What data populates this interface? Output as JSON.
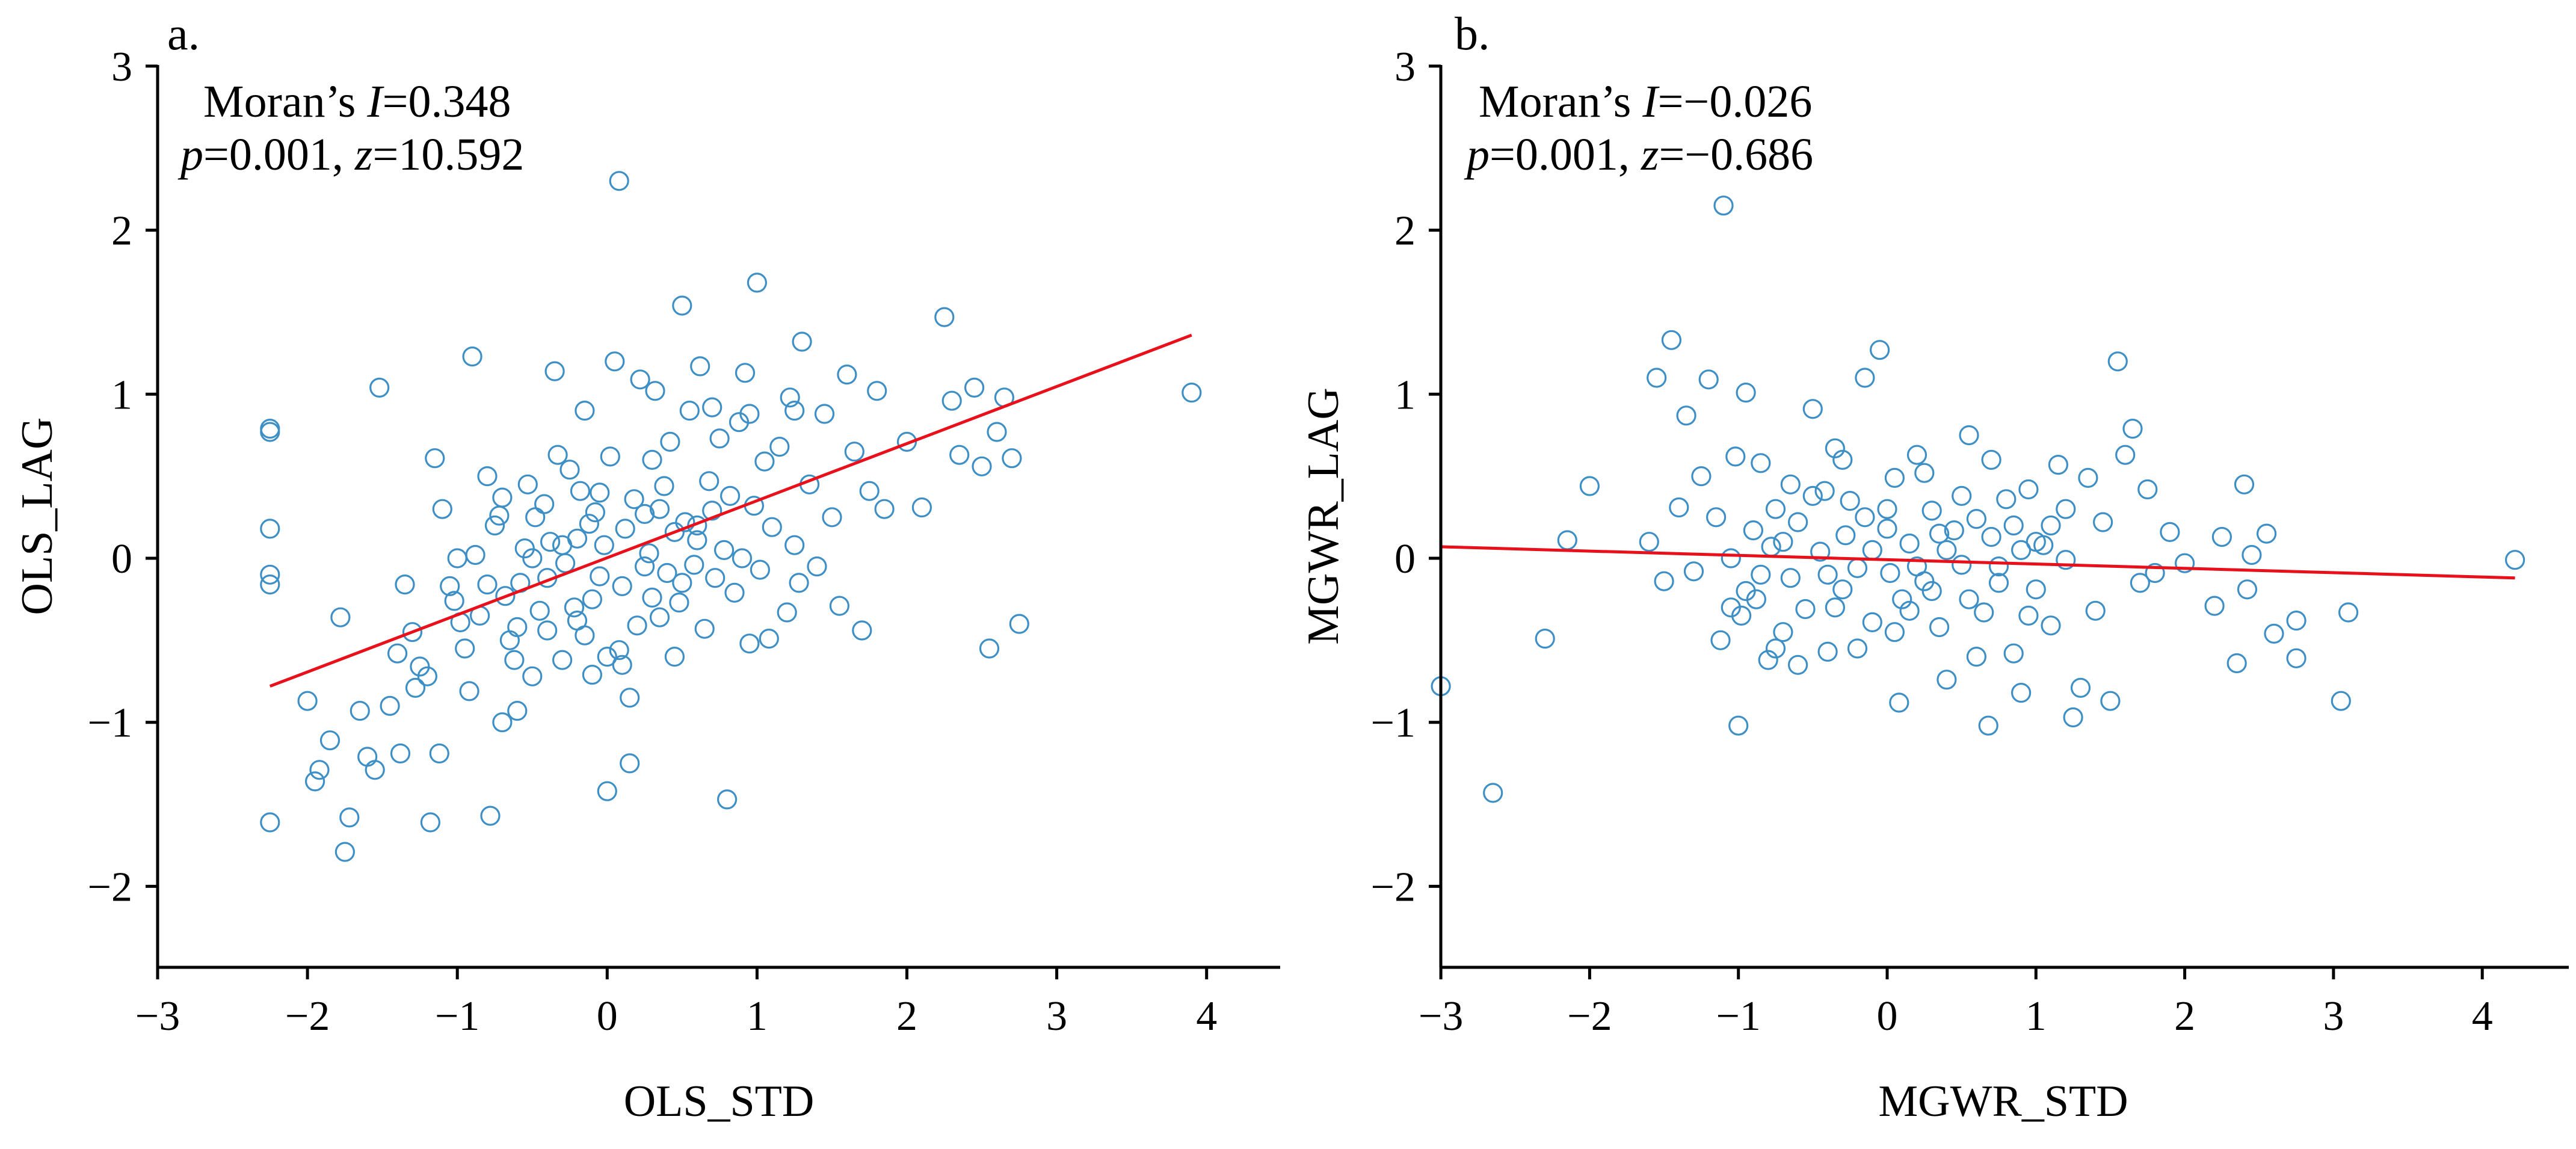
{
  "colors": {
    "point": "#3d8fc6",
    "fit": "#e8101a",
    "axis": "#000000"
  },
  "chart_data": [
    {
      "type": "scatter",
      "panel": "a.",
      "xlabel": "OLS_STD",
      "ylabel": "OLS_LAG",
      "xlim": [
        -3,
        4.5
      ],
      "ylim": [
        -2.5,
        3
      ],
      "xticks": [
        -3,
        -2,
        -1,
        0,
        1,
        2,
        3,
        4
      ],
      "yticks": [
        -2,
        -1,
        0,
        1,
        2,
        3
      ],
      "xtick_labels": [
        "−3",
        "−2",
        "−1",
        "0",
        "1",
        "2",
        "3",
        "4"
      ],
      "ytick_labels": [
        "−2",
        "−1",
        "0",
        "1",
        "2",
        "3"
      ],
      "annotation": {
        "line1": {
          "a": "Moran’s ",
          "b": "I",
          "c": "=0.348"
        },
        "line2": {
          "a": "p",
          "b": "=0.001, ",
          "c": "z",
          "d": "=10.592"
        }
      },
      "fit_line": {
        "x": [
          -2.25,
          3.9
        ],
        "y": [
          -0.78,
          1.36
        ]
      },
      "points": [
        [
          -2.25,
          0.79
        ],
        [
          -2.25,
          0.77
        ],
        [
          -2.25,
          0.18
        ],
        [
          -2.25,
          -0.1
        ],
        [
          -2.25,
          -0.16
        ],
        [
          -2.25,
          -1.61
        ],
        [
          -2.0,
          -0.87
        ],
        [
          -1.95,
          -1.36
        ],
        [
          -1.92,
          -1.29
        ],
        [
          -1.85,
          -1.11
        ],
        [
          -1.78,
          -0.36
        ],
        [
          -1.75,
          -1.79
        ],
        [
          -1.72,
          -1.58
        ],
        [
          -1.65,
          -0.93
        ],
        [
          -1.6,
          -1.21
        ],
        [
          -1.55,
          -1.29
        ],
        [
          -1.52,
          1.04
        ],
        [
          -1.45,
          -0.9
        ],
        [
          -1.4,
          -0.58
        ],
        [
          -1.38,
          -1.19
        ],
        [
          -1.35,
          -0.16
        ],
        [
          -1.28,
          -0.79
        ],
        [
          -1.25,
          -0.66
        ],
        [
          -1.2,
          -0.72
        ],
        [
          -1.18,
          -1.61
        ],
        [
          -1.15,
          0.61
        ],
        [
          -1.12,
          -1.19
        ],
        [
          -1.1,
          0.3
        ],
        [
          -1.05,
          -0.17
        ],
        [
          -1.02,
          -0.26
        ],
        [
          -0.98,
          -0.39
        ],
        [
          -0.95,
          -0.55
        ],
        [
          -0.92,
          -0.81
        ],
        [
          -0.9,
          1.23
        ],
        [
          -0.88,
          0.02
        ],
        [
          -0.85,
          -0.35
        ],
        [
          -0.8,
          -0.16
        ],
        [
          -0.78,
          -1.57
        ],
        [
          -0.75,
          0.2
        ],
        [
          -0.72,
          0.26
        ],
        [
          -0.7,
          0.37
        ],
        [
          -0.68,
          -0.23
        ],
        [
          -0.65,
          -0.5
        ],
        [
          -0.62,
          -0.62
        ],
        [
          -0.6,
          -0.93
        ],
        [
          -0.58,
          -0.15
        ],
        [
          -0.55,
          0.06
        ],
        [
          -0.53,
          0.45
        ],
        [
          -0.5,
          -0.72
        ],
        [
          -0.48,
          0.25
        ],
        [
          -0.45,
          -0.32
        ],
        [
          -0.42,
          0.33
        ],
        [
          -0.4,
          -0.44
        ],
        [
          -0.38,
          0.1
        ],
        [
          -0.35,
          1.14
        ],
        [
          -0.33,
          0.63
        ],
        [
          -0.3,
          -0.62
        ],
        [
          -0.28,
          -0.03
        ],
        [
          -0.25,
          0.54
        ],
        [
          -0.22,
          -0.3
        ],
        [
          -0.2,
          0.12
        ],
        [
          -0.18,
          0.41
        ],
        [
          -0.15,
          -0.47
        ],
        [
          -0.12,
          0.21
        ],
        [
          -0.1,
          -0.71
        ],
        [
          -0.08,
          0.28
        ],
        [
          -0.05,
          -0.11
        ],
        [
          -0.02,
          0.08
        ],
        [
          0.0,
          -1.42
        ],
        [
          0.02,
          0.62
        ],
        [
          0.05,
          1.2
        ],
        [
          0.08,
          -0.56
        ],
        [
          0.1,
          -0.17
        ],
        [
          0.12,
          0.18
        ],
        [
          0.15,
          -1.25
        ],
        [
          0.18,
          0.36
        ],
        [
          0.2,
          -0.41
        ],
        [
          0.22,
          1.09
        ],
        [
          0.25,
          0.27
        ],
        [
          0.28,
          0.03
        ],
        [
          0.3,
          -0.24
        ],
        [
          0.32,
          1.02
        ],
        [
          0.35,
          -0.36
        ],
        [
          0.38,
          0.44
        ],
        [
          0.4,
          -0.09
        ],
        [
          0.42,
          0.71
        ],
        [
          0.45,
          0.16
        ],
        [
          0.48,
          -0.27
        ],
        [
          0.5,
          1.54
        ],
        [
          0.52,
          0.22
        ],
        [
          0.55,
          0.9
        ],
        [
          0.58,
          -0.04
        ],
        [
          0.6,
          0.11
        ],
        [
          0.62,
          1.17
        ],
        [
          0.65,
          -0.43
        ],
        [
          0.68,
          0.47
        ],
        [
          0.7,
          0.29
        ],
        [
          0.72,
          -0.12
        ],
        [
          0.75,
          0.73
        ],
        [
          0.78,
          0.05
        ],
        [
          0.8,
          -1.47
        ],
        [
          0.82,
          0.38
        ],
        [
          0.85,
          -0.21
        ],
        [
          0.88,
          0.83
        ],
        [
          0.9,
          0.0
        ],
        [
          0.92,
          1.13
        ],
        [
          0.95,
          -0.52
        ],
        [
          0.98,
          0.32
        ],
        [
          1.0,
          1.68
        ],
        [
          1.02,
          -0.07
        ],
        [
          1.05,
          0.59
        ],
        [
          1.08,
          -0.49
        ],
        [
          1.1,
          0.19
        ],
        [
          1.15,
          0.68
        ],
        [
          1.2,
          -0.33
        ],
        [
          1.22,
          0.98
        ],
        [
          1.25,
          0.08
        ],
        [
          1.28,
          -0.15
        ],
        [
          1.3,
          1.32
        ],
        [
          1.35,
          0.45
        ],
        [
          1.4,
          -0.05
        ],
        [
          1.45,
          0.88
        ],
        [
          1.5,
          0.25
        ],
        [
          1.55,
          -0.29
        ],
        [
          1.6,
          1.12
        ],
        [
          1.65,
          0.65
        ],
        [
          1.7,
          -0.44
        ],
        [
          1.75,
          0.41
        ],
        [
          1.8,
          1.02
        ],
        [
          1.85,
          0.3
        ],
        [
          2.0,
          0.71
        ],
        [
          2.1,
          0.31
        ],
        [
          2.25,
          1.47
        ],
        [
          2.3,
          0.96
        ],
        [
          2.35,
          0.63
        ],
        [
          2.45,
          1.04
        ],
        [
          2.5,
          0.56
        ],
        [
          2.55,
          -0.55
        ],
        [
          2.6,
          0.77
        ],
        [
          2.65,
          0.98
        ],
        [
          2.7,
          0.61
        ],
        [
          2.75,
          -0.4
        ],
        [
          3.9,
          1.01
        ],
        [
          0.08,
          2.3
        ],
        [
          -0.4,
          -0.12
        ],
        [
          -0.2,
          -0.38
        ],
        [
          0.0,
          -0.6
        ],
        [
          0.15,
          -0.85
        ],
        [
          -0.6,
          -0.42
        ],
        [
          -0.3,
          0.08
        ],
        [
          0.3,
          0.6
        ],
        [
          0.45,
          -0.6
        ],
        [
          -0.8,
          0.5
        ],
        [
          -1.0,
          0.0
        ],
        [
          0.7,
          0.92
        ],
        [
          0.95,
          0.88
        ],
        [
          -0.1,
          -0.25
        ],
        [
          0.25,
          -0.05
        ],
        [
          -0.5,
          0.0
        ],
        [
          0.6,
          0.2
        ],
        [
          1.25,
          0.9
        ],
        [
          -1.3,
          -0.45
        ],
        [
          -0.15,
          0.9
        ],
        [
          0.1,
          -0.65
        ],
        [
          0.5,
          -0.15
        ],
        [
          -0.7,
          -1.0
        ],
        [
          0.35,
          0.3
        ],
        [
          -0.05,
          0.4
        ]
      ]
    },
    {
      "type": "scatter",
      "panel": "b.",
      "xlabel": "MGWR_STD",
      "ylabel": "MGWR_LAG",
      "xlim": [
        -3,
        4.5
      ],
      "ylim": [
        -2.5,
        3
      ],
      "xticks": [
        -3,
        -2,
        -1,
        0,
        1,
        2,
        3,
        4
      ],
      "yticks": [
        -2,
        -1,
        0,
        1,
        2,
        3
      ],
      "xtick_labels": [
        "−3",
        "−2",
        "−1",
        "0",
        "1",
        "2",
        "3",
        "4"
      ],
      "ytick_labels": [
        "−2",
        "−1",
        "0",
        "1",
        "2",
        "3"
      ],
      "annotation": {
        "line1": {
          "a": "Moran’s ",
          "b": "I",
          "c": "=−0.026"
        },
        "line2": {
          "a": "p",
          "b": "=0.001, ",
          "c": "z",
          "d": "=−0.686"
        }
      },
      "fit_line": {
        "x": [
          -3.0,
          4.22
        ],
        "y": [
          0.07,
          -0.12
        ]
      },
      "points": [
        [
          -3.0,
          -0.78
        ],
        [
          -2.65,
          -1.43
        ],
        [
          -2.3,
          -0.49
        ],
        [
          -2.15,
          0.11
        ],
        [
          -2.0,
          0.44
        ],
        [
          -1.6,
          0.1
        ],
        [
          -1.55,
          1.1
        ],
        [
          -1.5,
          -0.14
        ],
        [
          -1.45,
          1.33
        ],
        [
          -1.4,
          0.31
        ],
        [
          -1.35,
          0.87
        ],
        [
          -1.3,
          -0.08
        ],
        [
          -1.2,
          1.09
        ],
        [
          -1.15,
          0.25
        ],
        [
          -1.12,
          -0.5
        ],
        [
          -1.1,
          2.15
        ],
        [
          -1.05,
          0.0
        ],
        [
          -1.02,
          0.62
        ],
        [
          -1.0,
          -1.02
        ],
        [
          -0.98,
          -0.35
        ],
        [
          -0.95,
          1.01
        ],
        [
          -0.9,
          0.17
        ],
        [
          -0.88,
          -0.25
        ],
        [
          -0.85,
          0.58
        ],
        [
          -0.8,
          -0.62
        ],
        [
          -0.78,
          0.07
        ],
        [
          -0.75,
          0.3
        ],
        [
          -0.7,
          -0.45
        ],
        [
          -0.65,
          -0.12
        ],
        [
          -0.6,
          0.22
        ],
        [
          -0.55,
          -0.31
        ],
        [
          -0.5,
          0.91
        ],
        [
          -0.45,
          0.04
        ],
        [
          -0.42,
          0.41
        ],
        [
          -0.4,
          -0.57
        ],
        [
          -0.35,
          0.67
        ],
        [
          -0.3,
          -0.19
        ],
        [
          -0.28,
          0.14
        ],
        [
          -0.25,
          0.35
        ],
        [
          -0.2,
          -0.06
        ],
        [
          -0.15,
          1.1
        ],
        [
          -0.1,
          -0.39
        ],
        [
          -0.05,
          1.27
        ],
        [
          0.0,
          0.18
        ],
        [
          0.02,
          -0.09
        ],
        [
          0.05,
          0.49
        ],
        [
          0.08,
          -0.88
        ],
        [
          0.1,
          -0.25
        ],
        [
          0.15,
          0.09
        ],
        [
          0.2,
          0.63
        ],
        [
          0.25,
          -0.14
        ],
        [
          0.3,
          0.29
        ],
        [
          0.35,
          -0.42
        ],
        [
          0.4,
          -0.74
        ],
        [
          0.45,
          0.17
        ],
        [
          0.5,
          -0.04
        ],
        [
          0.55,
          0.75
        ],
        [
          0.6,
          0.24
        ],
        [
          0.65,
          -0.33
        ],
        [
          0.68,
          -1.02
        ],
        [
          0.7,
          0.13
        ],
        [
          0.75,
          -0.15
        ],
        [
          0.8,
          0.36
        ],
        [
          0.85,
          -0.58
        ],
        [
          0.9,
          -0.82
        ],
        [
          0.95,
          0.42
        ],
        [
          1.0,
          -0.19
        ],
        [
          1.05,
          0.08
        ],
        [
          1.1,
          -0.41
        ],
        [
          1.15,
          0.57
        ],
        [
          1.2,
          -0.01
        ],
        [
          1.25,
          -0.97
        ],
        [
          1.3,
          -0.79
        ],
        [
          1.35,
          0.49
        ],
        [
          1.4,
          -0.32
        ],
        [
          1.45,
          0.22
        ],
        [
          1.5,
          -0.87
        ],
        [
          1.55,
          1.2
        ],
        [
          1.6,
          0.63
        ],
        [
          1.65,
          0.79
        ],
        [
          1.7,
          -0.15
        ],
        [
          1.75,
          0.42
        ],
        [
          1.8,
          -0.09
        ],
        [
          1.9,
          0.16
        ],
        [
          2.0,
          -0.03
        ],
        [
          2.2,
          -0.29
        ],
        [
          2.25,
          0.13
        ],
        [
          2.35,
          -0.64
        ],
        [
          2.4,
          0.45
        ],
        [
          2.42,
          -0.19
        ],
        [
          2.45,
          0.02
        ],
        [
          2.55,
          0.15
        ],
        [
          2.6,
          -0.46
        ],
        [
          2.75,
          -0.61
        ],
        [
          2.75,
          -0.38
        ],
        [
          3.05,
          -0.87
        ],
        [
          3.1,
          -0.33
        ],
        [
          4.22,
          -0.01
        ],
        [
          -0.6,
          -0.65
        ],
        [
          -0.2,
          -0.55
        ],
        [
          0.25,
          0.52
        ],
        [
          0.7,
          0.6
        ],
        [
          -0.95,
          -0.2
        ],
        [
          -0.7,
          0.1
        ],
        [
          -0.35,
          -0.3
        ],
        [
          0.05,
          -0.45
        ],
        [
          0.4,
          0.05
        ],
        [
          0.85,
          0.2
        ],
        [
          1.2,
          0.3
        ],
        [
          -0.5,
          0.38
        ],
        [
          -0.15,
          0.25
        ],
        [
          0.3,
          -0.2
        ],
        [
          0.6,
          -0.6
        ],
        [
          1.0,
          0.1
        ],
        [
          -1.25,
          0.5
        ],
        [
          -0.85,
          -0.1
        ],
        [
          0.15,
          -0.32
        ],
        [
          0.5,
          0.38
        ],
        [
          -0.3,
          0.6
        ],
        [
          0.95,
          -0.35
        ],
        [
          -0.65,
          0.45
        ],
        [
          -0.4,
          -0.1
        ],
        [
          0.0,
          0.3
        ],
        [
          0.35,
          0.15
        ],
        [
          0.75,
          -0.05
        ],
        [
          1.1,
          0.2
        ],
        [
          -1.05,
          -0.3
        ],
        [
          -0.75,
          -0.55
        ],
        [
          -0.1,
          0.05
        ],
        [
          0.2,
          -0.05
        ],
        [
          0.55,
          -0.25
        ],
        [
          0.9,
          0.05
        ]
      ]
    }
  ]
}
